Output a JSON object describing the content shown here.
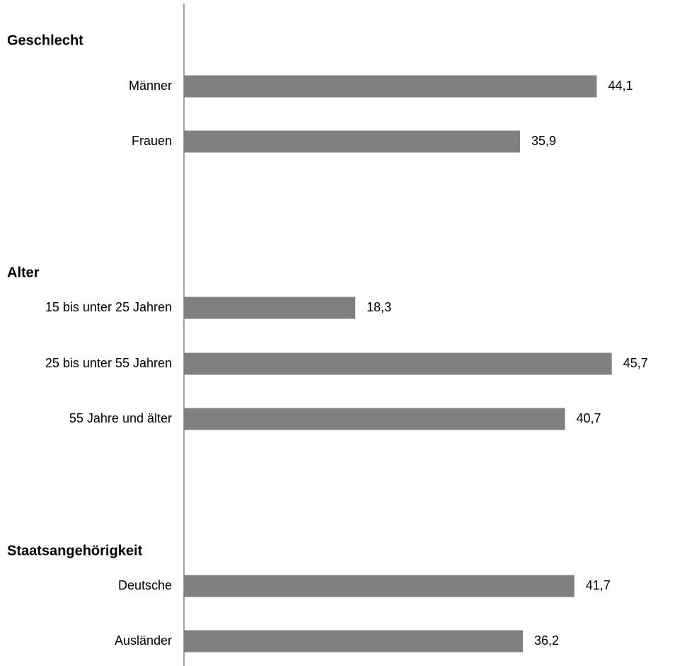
{
  "colors": {
    "bar": "#808080",
    "axis": "#808080",
    "text": "#000000"
  },
  "chart_data": {
    "type": "bar",
    "orientation": "horizontal",
    "xlim": [
      0,
      49.2
    ],
    "grid": false,
    "groups": [
      {
        "title": "Geschlecht",
        "categories": [
          "Männer",
          "Frauen"
        ],
        "values": [
          44.1,
          35.9
        ],
        "value_labels": [
          "44,1",
          "35,9"
        ]
      },
      {
        "title": "Alter",
        "categories": [
          "15 bis unter 25 Jahren",
          "25 bis unter 55 Jahren",
          "55 Jahre und älter"
        ],
        "values": [
          18.3,
          45.7,
          40.7
        ],
        "value_labels": [
          "18,3",
          "45,7",
          "40,7"
        ]
      },
      {
        "title": "Staatsangehörigkeit",
        "categories": [
          "Deutsche",
          "Ausländer"
        ],
        "values": [
          41.7,
          36.2
        ],
        "value_labels": [
          "41,7",
          "36,2"
        ]
      }
    ]
  }
}
